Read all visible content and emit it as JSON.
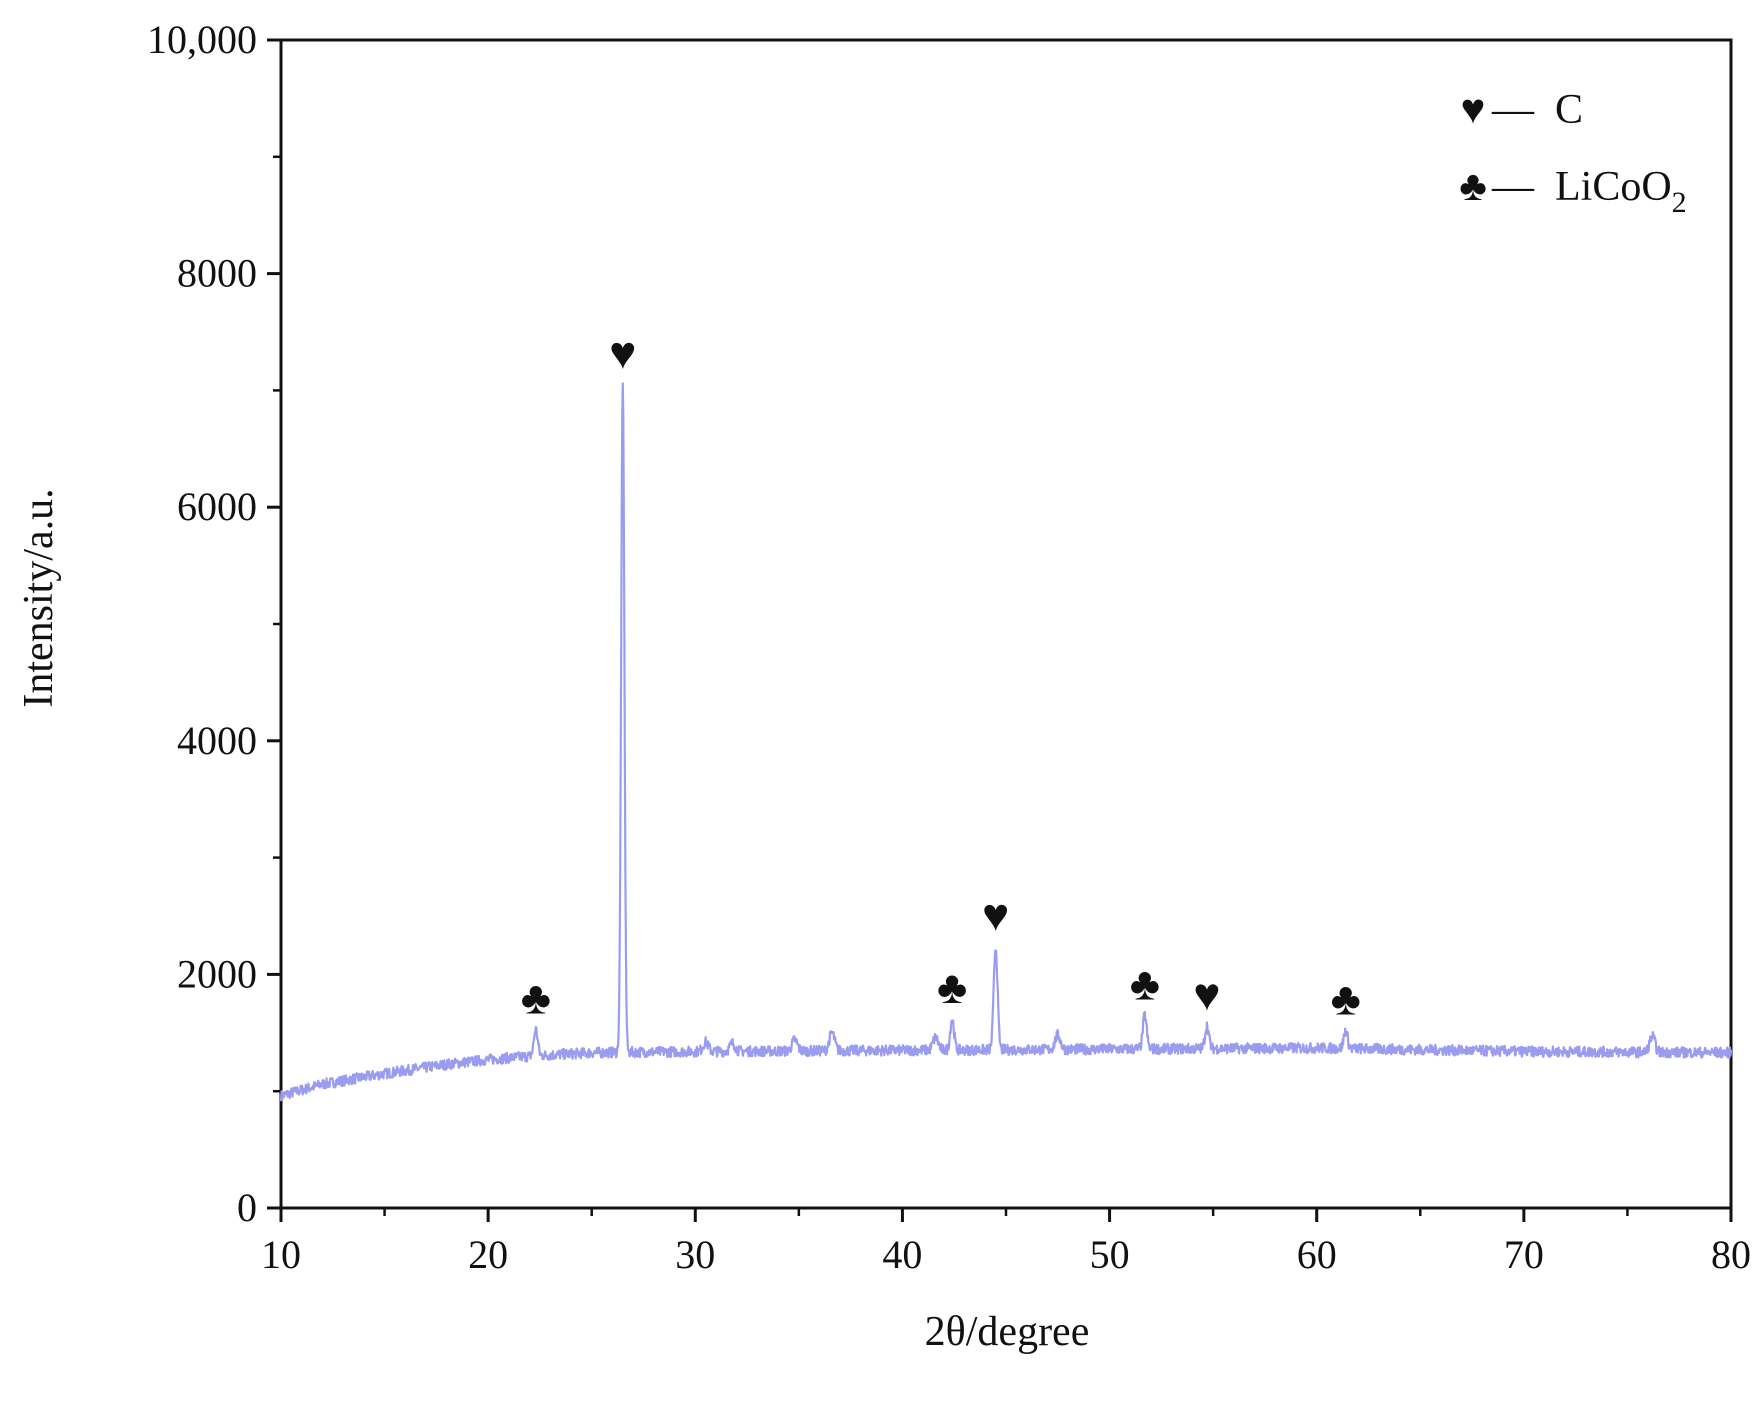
{
  "chart_data": {
    "type": "line",
    "title": "",
    "xlabel": "2θ/degree",
    "ylabel": "Intensity/a.u.",
    "xlim": [
      10,
      80
    ],
    "ylim": [
      0,
      10000
    ],
    "x_ticks": [
      10,
      20,
      30,
      40,
      50,
      60,
      70,
      80
    ],
    "x_tick_labels": [
      "10",
      "20",
      "30",
      "40",
      "50",
      "60",
      "70",
      "80"
    ],
    "y_ticks": [
      0,
      2000,
      4000,
      6000,
      8000,
      10000
    ],
    "y_tick_labels": [
      "0",
      "2000",
      "4000",
      "6000",
      "8000",
      "10,000"
    ],
    "grid": false,
    "line_color": "#9a9cf0",
    "baseline": [
      [
        10,
        960
      ],
      [
        12,
        1060
      ],
      [
        15,
        1150
      ],
      [
        18,
        1230
      ],
      [
        20,
        1270
      ],
      [
        22,
        1300
      ],
      [
        25,
        1330
      ],
      [
        30,
        1340
      ],
      [
        40,
        1350
      ],
      [
        50,
        1360
      ],
      [
        60,
        1370
      ],
      [
        70,
        1340
      ],
      [
        80,
        1330
      ]
    ],
    "peaks": [
      {
        "x": 22.3,
        "y": 1530,
        "phase": "LiCoO2"
      },
      {
        "x": 26.5,
        "y": 7050,
        "phase": "C"
      },
      {
        "x": 42.4,
        "y": 1620,
        "phase": "LiCoO2"
      },
      {
        "x": 44.5,
        "y": 2240,
        "phase": "C"
      },
      {
        "x": 51.7,
        "y": 1650,
        "phase": "LiCoO2"
      },
      {
        "x": 54.7,
        "y": 1560,
        "phase": "C"
      },
      {
        "x": 61.4,
        "y": 1520,
        "phase": "LiCoO2"
      }
    ],
    "minor_bumps": [
      {
        "x": 30.5,
        "y": 1420
      },
      {
        "x": 31.8,
        "y": 1410
      },
      {
        "x": 34.8,
        "y": 1440
      },
      {
        "x": 36.6,
        "y": 1500
      },
      {
        "x": 41.6,
        "y": 1460
      },
      {
        "x": 47.5,
        "y": 1480
      },
      {
        "x": 76.2,
        "y": 1470
      }
    ],
    "legend": {
      "position": "top-right",
      "entries": [
        {
          "symbol": "heart",
          "glyph": "♥",
          "dash": "––",
          "label": "C",
          "sub": ""
        },
        {
          "symbol": "club",
          "glyph": "♣",
          "dash": "––",
          "label": "LiCoO",
          "sub": "2"
        }
      ]
    },
    "markers": [
      {
        "x": 22.3,
        "y": 1530,
        "symbol": "club",
        "glyph": "♣"
      },
      {
        "x": 26.5,
        "y": 7050,
        "symbol": "heart",
        "glyph": "♥"
      },
      {
        "x": 42.4,
        "y": 1620,
        "symbol": "club",
        "glyph": "♣"
      },
      {
        "x": 44.5,
        "y": 2240,
        "symbol": "heart",
        "glyph": "♥"
      },
      {
        "x": 51.7,
        "y": 1650,
        "symbol": "club",
        "glyph": "♣"
      },
      {
        "x": 54.7,
        "y": 1560,
        "symbol": "heart",
        "glyph": "♥"
      },
      {
        "x": 61.4,
        "y": 1520,
        "symbol": "club",
        "glyph": "♣"
      }
    ]
  }
}
